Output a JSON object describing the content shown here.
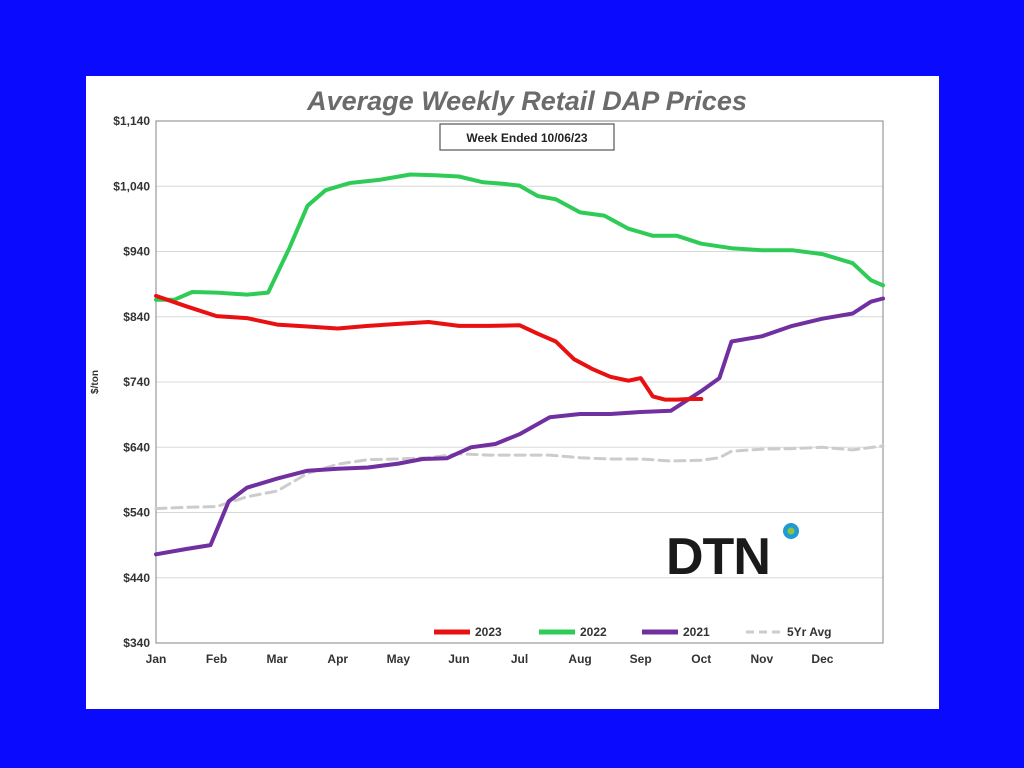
{
  "chart_data": {
    "type": "line",
    "title": "Average Weekly Retail DAP Prices",
    "subtitle": "Week Ended 10/06/23",
    "ylabel": "$/ton",
    "xlabel": "",
    "ylim": [
      340,
      1140
    ],
    "yticks": [
      340,
      440,
      540,
      640,
      740,
      840,
      940,
      1040,
      1140
    ],
    "ytick_labels": [
      "$340",
      "$440",
      "$540",
      "$640",
      "$740",
      "$840",
      "$940",
      "$1,040",
      "$1,140"
    ],
    "xlim": [
      0,
      12
    ],
    "xticks": [
      0,
      1,
      2,
      3,
      4,
      5,
      6,
      7,
      8,
      9,
      10,
      11
    ],
    "xtick_labels": [
      "Jan",
      "Feb",
      "Mar",
      "Apr",
      "May",
      "Jun",
      "Jul",
      "Aug",
      "Sep",
      "Oct",
      "Nov",
      "Dec"
    ],
    "grid": true,
    "legend_position": "bottom-right",
    "series": [
      {
        "name": "2023",
        "color": "#e81010",
        "dashed": false,
        "x": [
          0,
          0.5,
          1,
          1.5,
          2,
          2.5,
          3,
          3.5,
          4,
          4.5,
          5,
          5.5,
          6,
          6.3,
          6.6,
          6.9,
          7.2,
          7.5,
          7.8,
          8.0,
          8.2,
          8.4,
          8.6,
          8.8,
          9.0
        ],
        "values": [
          872,
          856,
          841,
          838,
          828,
          825,
          822,
          826,
          829,
          832,
          826,
          826,
          827,
          814,
          802,
          775,
          760,
          748,
          742,
          746,
          718,
          713,
          713,
          714,
          714
        ]
      },
      {
        "name": "2022",
        "color": "#2ecc56",
        "dashed": false,
        "x": [
          0,
          0.3,
          0.6,
          1,
          1.5,
          1.85,
          2.2,
          2.5,
          2.8,
          3.2,
          3.7,
          4.2,
          4.6,
          5,
          5.4,
          5.7,
          6,
          6.3,
          6.6,
          7,
          7.4,
          7.8,
          8.2,
          8.6,
          9,
          9.5,
          10,
          10.5,
          11,
          11.5,
          11.8,
          12
        ],
        "values": [
          866,
          866,
          878,
          877,
          874,
          877,
          945,
          1010,
          1034,
          1045,
          1050,
          1058,
          1057,
          1055,
          1046,
          1044,
          1041,
          1025,
          1020,
          1000,
          995,
          975,
          964,
          964,
          952,
          945,
          942,
          942,
          936,
          922,
          896,
          888
        ]
      },
      {
        "name": "2021",
        "color": "#7030a0",
        "dashed": false,
        "x": [
          0,
          0.5,
          0.9,
          1.2,
          1.5,
          2.0,
          2.5,
          3.0,
          3.5,
          4.0,
          4.4,
          4.8,
          5.2,
          5.6,
          6.0,
          6.5,
          7.0,
          7.5,
          8.0,
          8.5,
          9.0,
          9.3,
          9.5,
          10.0,
          10.5,
          11.0,
          11.5,
          11.8,
          12.0
        ],
        "values": [
          476,
          484,
          490,
          557,
          578,
          592,
          604,
          607,
          609,
          615,
          622,
          623,
          640,
          645,
          660,
          686,
          691,
          691,
          694,
          696,
          726,
          746,
          802,
          810,
          826,
          837,
          845,
          863,
          868
        ]
      },
      {
        "name": "5Yr Avg",
        "color": "#cccccc",
        "dashed": true,
        "x": [
          0,
          0.5,
          1,
          1.5,
          2,
          2.5,
          3,
          3.5,
          4,
          4.5,
          5,
          5.5,
          6,
          6.5,
          7,
          7.5,
          8,
          8.5,
          9,
          9.3,
          9.5,
          10,
          10.5,
          11,
          11.5,
          12
        ],
        "values": [
          546,
          548,
          549,
          564,
          573,
          600,
          614,
          621,
          622,
          624,
          630,
          628,
          628,
          628,
          624,
          622,
          622,
          619,
          620,
          624,
          634,
          637,
          638,
          640,
          636,
          642
        ]
      }
    ]
  },
  "logo": {
    "text": "DTN",
    "dot_color": "#1f9ad6",
    "dot_inner_color": "#8fc33f"
  }
}
